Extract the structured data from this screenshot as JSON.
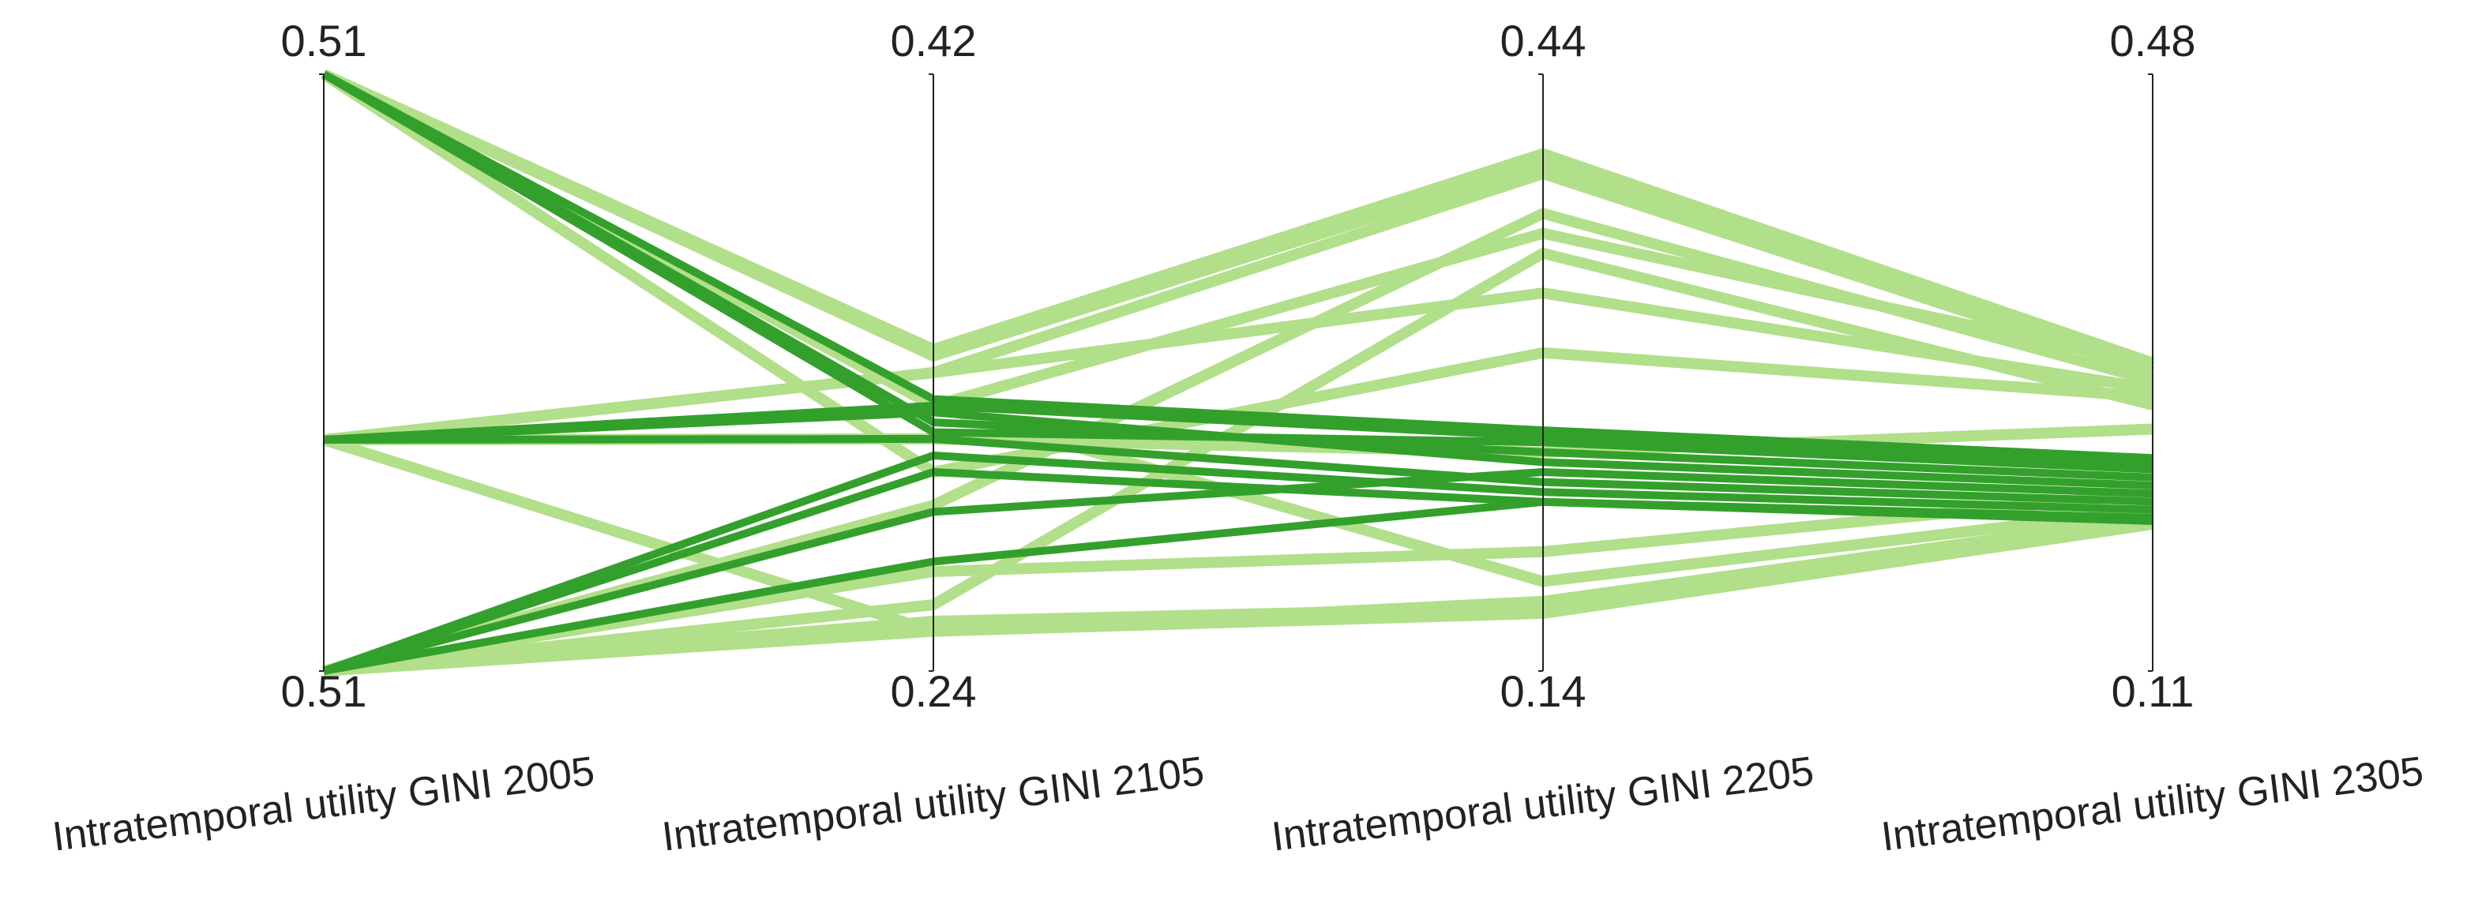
{
  "chart_data": {
    "type": "parallel",
    "axes": [
      {
        "name": "Intratemporal utility GINI 2005",
        "ylim": [
          0.506,
          0.514
        ],
        "yticks": [
          {
            "value": 0.506,
            "label": "0.51"
          },
          {
            "value": 0.514,
            "label": "0.51"
          }
        ]
      },
      {
        "name": "Intratemporal utility GINI 2105",
        "ylim": [
          0.24,
          0.42
        ],
        "yticks": [
          0.24,
          0.42
        ]
      },
      {
        "name": "Intratemporal utility GINI 2205",
        "ylim": [
          0.14,
          0.44
        ],
        "yticks": [
          0.14,
          0.44
        ]
      },
      {
        "name": "Intratemporal utility GINI 2305",
        "ylim": [
          0.11,
          0.48
        ],
        "yticks": [
          0.11,
          0.48
        ]
      }
    ],
    "series": [
      {
        "color": "#b2df8a",
        "lines": [
          [
            0.514,
            0.337,
            0.4,
            0.301
          ],
          [
            0.514,
            0.335,
            0.395,
            0.298
          ],
          [
            0.5091,
            0.33,
            0.39,
            0.295
          ],
          [
            0.506,
            0.29,
            0.37,
            0.29
          ],
          [
            0.514,
            0.32,
            0.36,
            0.3
          ],
          [
            0.5091,
            0.252,
            0.169,
            0.201
          ],
          [
            0.506,
            0.252,
            0.175,
            0.205
          ],
          [
            0.506,
            0.255,
            0.172,
            0.202
          ],
          [
            0.514,
            0.3,
            0.3,
            0.28
          ],
          [
            0.5091,
            0.31,
            0.25,
            0.26
          ],
          [
            0.506,
            0.27,
            0.2,
            0.22
          ],
          [
            0.5091,
            0.33,
            0.33,
            0.285
          ],
          [
            0.514,
            0.32,
            0.185,
            0.21
          ],
          [
            0.506,
            0.26,
            0.35,
            0.275
          ]
        ]
      },
      {
        "color": "#33a02c",
        "lines": [
          [
            0.514,
            0.322,
            0.261,
            0.242
          ],
          [
            0.514,
            0.315,
            0.25,
            0.23
          ],
          [
            0.5091,
            0.318,
            0.245,
            0.225
          ],
          [
            0.5091,
            0.31,
            0.235,
            0.215
          ],
          [
            0.506,
            0.305,
            0.23,
            0.21
          ],
          [
            0.506,
            0.3,
            0.225,
            0.203
          ],
          [
            0.506,
            0.288,
            0.24,
            0.22
          ],
          [
            0.506,
            0.273,
            0.225,
            0.205
          ],
          [
            0.514,
            0.312,
            0.255,
            0.235
          ],
          [
            0.5091,
            0.32,
            0.258,
            0.238
          ]
        ]
      }
    ]
  }
}
